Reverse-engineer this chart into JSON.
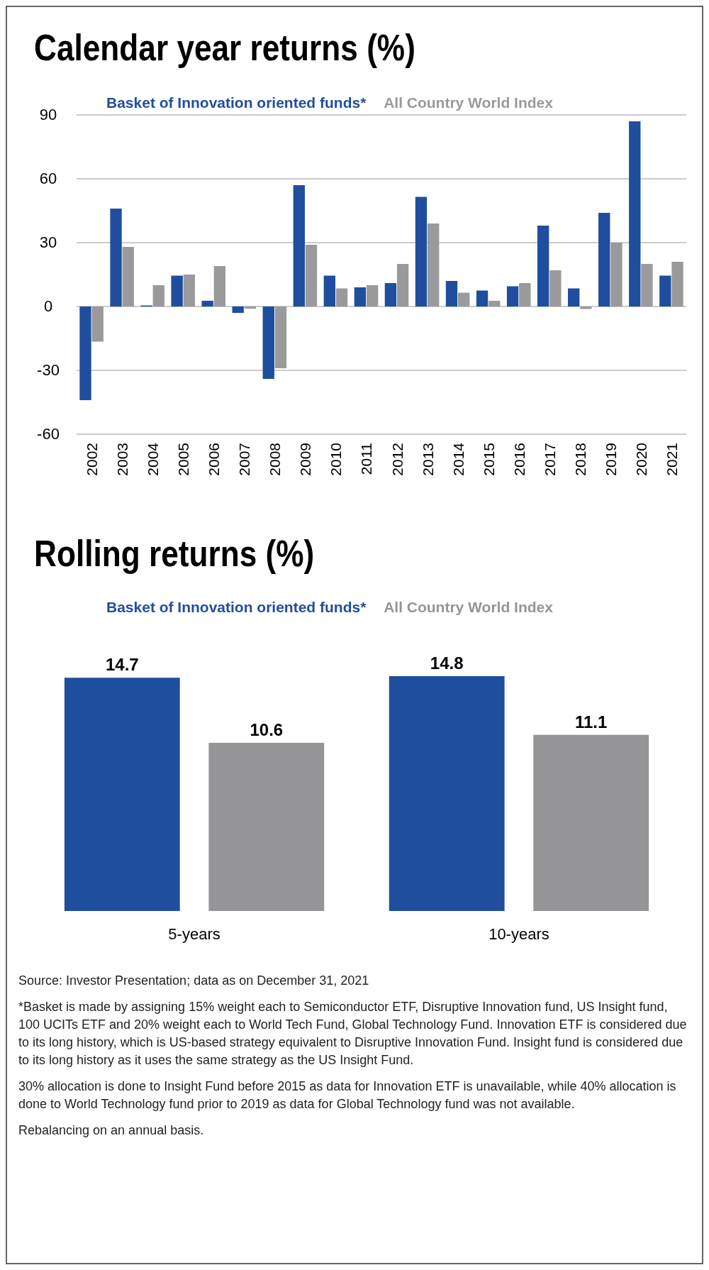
{
  "chart_data": [
    {
      "type": "bar",
      "title": "Calendar year returns (%)",
      "categories": [
        "2002",
        "2003",
        "2004",
        "2005",
        "2006",
        "2007",
        "2008",
        "2009",
        "2010",
        "2011",
        "2012",
        "2013",
        "2014",
        "2015",
        "2016",
        "2017",
        "2018",
        "2019",
        "2020",
        "2021"
      ],
      "series": [
        {
          "name": "Basket of Innovation oriented funds*",
          "color": "#1f4e9f",
          "values": [
            -44,
            46,
            0.5,
            14.5,
            2.7,
            -3,
            -34,
            57,
            14.5,
            9,
            11,
            51.5,
            12,
            7.5,
            9.5,
            38,
            8.5,
            44,
            87,
            14.5
          ]
        },
        {
          "name": "All Country World Index",
          "color": "#9a9a9c",
          "values": [
            -16.5,
            28,
            10,
            15,
            19,
            -1,
            -29,
            29,
            8.5,
            10,
            20,
            39,
            6.5,
            2.7,
            11,
            17,
            -1.2,
            30,
            20,
            21
          ]
        }
      ],
      "ylim": [
        -60,
        90
      ],
      "yticks": [
        -60,
        -30,
        0,
        30,
        60,
        90
      ],
      "grid": "y",
      "legend": "top"
    },
    {
      "type": "bar",
      "title": "Rolling returns (%)",
      "categories": [
        "5-years",
        "10-years"
      ],
      "series": [
        {
          "name": "Basket of Innovation oriented funds*",
          "color": "#1f4e9f",
          "values": [
            14.7,
            14.8
          ]
        },
        {
          "name": "All Country World Index",
          "color": "#959598",
          "values": [
            10.6,
            11.1
          ]
        }
      ],
      "data_labels": true,
      "legend": "top",
      "annotations": [
        "Source: Investor Presentation; data as on December 31, 2021",
        "*Basket is made by assigning 15% weight each to Semiconductor ETF, Disruptive Innovation fund, US Insight fund, 100 UCITs ETF and 20% weight each to World Tech Fund, Global Technology Fund. Innovation ETF is considered due to its long history, which is US-based strategy equivalent to Disruptive Innovation Fund. Insight fund is considered due to its long history as it uses the same strategy as the US Insight Fund.",
        "30% allocation is done to Insight Fund before 2015 as data for Innovation ETF is unavailable, while 40% allocation is done to World Technology fund prior to 2019 as data for Global Technology fund was not available.",
        "Rebalancing on an annual basis."
      ]
    }
  ]
}
